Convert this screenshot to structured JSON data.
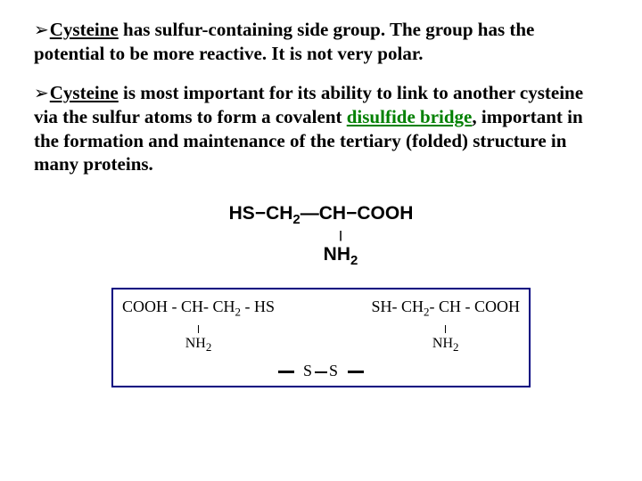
{
  "para1": {
    "cysteine": "Cysteine",
    "rest": " has sulfur-containing side group. The group has the potential to be more reactive. It is not very polar."
  },
  "para2": {
    "lead": "Cysteine",
    "mid1": " is most important for its ability to link to another cysteine via the sulfur atoms to form a covalent ",
    "disulfide": "disulfide bridge",
    "mid2": ", important in the formation and maintenance of the tertiary (folded) structure in many proteins."
  },
  "struct": {
    "line1_hs": "HS",
    "line1_ch2": "CH",
    "line1_ch": "CH",
    "line1_cooh": "COOH",
    "nh2": "NH",
    "two": "2"
  },
  "box": {
    "left_cooh": "COOH",
    "left_ch": "CH",
    "left_ch2": "CH",
    "left_hs": "HS",
    "right_sh": "SH",
    "right_ch2": "CH",
    "right_ch": "CH",
    "right_cooh": "COOH",
    "nh2": "NH",
    "two": "2",
    "s": "S"
  }
}
